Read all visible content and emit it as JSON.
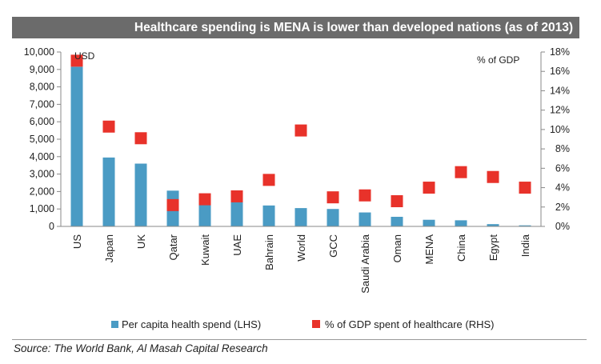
{
  "title": "Healthcare spending is MENA is lower than developed nations (as of 2013)",
  "source": "Source: The World Bank, Al Masah Capital Research",
  "chart_data": {
    "type": "bar",
    "categories": [
      "US",
      "Japan",
      "UK",
      "Qatar",
      "Kuwait",
      "UAE",
      "Bahrain",
      "World",
      "GCC",
      "Saudi Arabia",
      "Oman",
      "MENA",
      "China",
      "Egypt",
      "India"
    ],
    "series": [
      {
        "name": "Per capita health spend (LHS)",
        "type": "bar",
        "axis": "left",
        "color": "#4a9bc4",
        "values": [
          9150,
          3950,
          3600,
          2050,
          1250,
          1550,
          1200,
          1050,
          1000,
          800,
          550,
          380,
          350,
          130,
          60
        ]
      },
      {
        "name": "% of GDP spent of healthcare (RHS)",
        "type": "scatter",
        "axis": "right",
        "color": "#e8322a",
        "values": [
          17.1,
          10.3,
          9.1,
          2.2,
          2.8,
          3.1,
          4.8,
          9.9,
          3.0,
          3.2,
          2.6,
          4.0,
          5.6,
          5.1,
          4.0
        ]
      }
    ],
    "y_left": {
      "label": "USD",
      "min": 0,
      "max": 10000,
      "step": 1000,
      "ticks": [
        "0",
        "1,000",
        "2,000",
        "3,000",
        "4,000",
        "5,000",
        "6,000",
        "7,000",
        "8,000",
        "9,000",
        "10,000"
      ]
    },
    "y_right": {
      "label": "% of GDP",
      "min": 0,
      "max": 18,
      "step": 2,
      "ticks": [
        "0%",
        "2%",
        "4%",
        "6%",
        "8%",
        "10%",
        "12%",
        "14%",
        "16%",
        "18%"
      ]
    },
    "grid": false,
    "legend_position": "bottom"
  }
}
